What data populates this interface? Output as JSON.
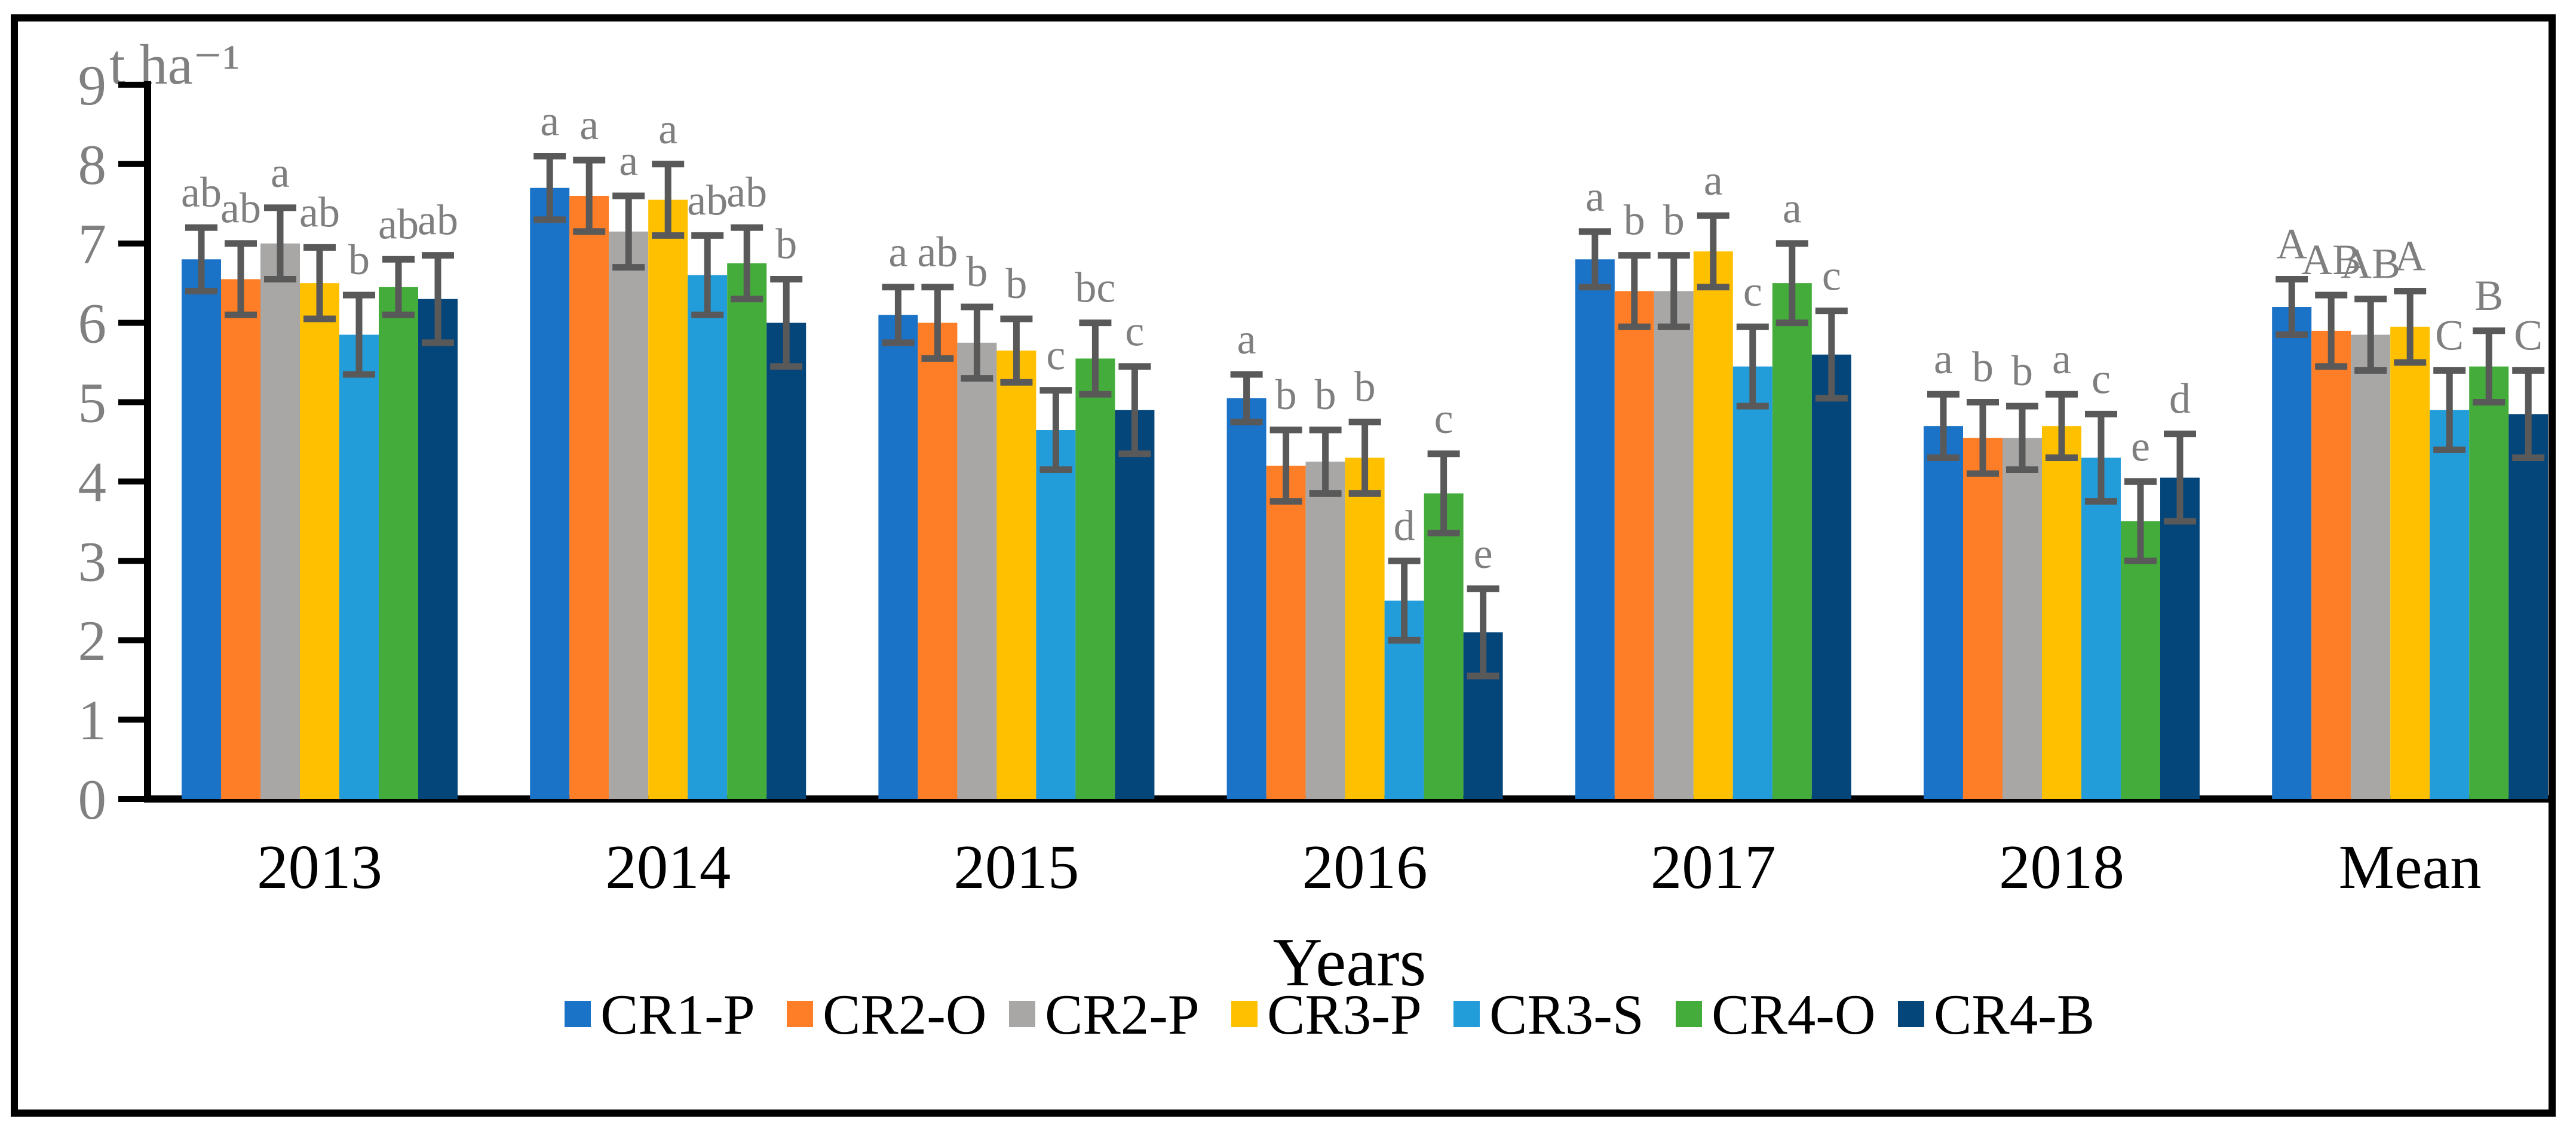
{
  "figure": {
    "unit_label": "t ha⁻¹",
    "x_axis_title": "Years"
  },
  "chart_data": {
    "type": "bar",
    "title": "",
    "ylabel": "t ha⁻¹",
    "xlabel": "Years",
    "ylim": [
      0,
      9
    ],
    "yticks": [
      0,
      1,
      2,
      3,
      4,
      5,
      6,
      7,
      8,
      9
    ],
    "grid": false,
    "legend_position": "bottom",
    "categories": [
      "2013",
      "2014",
      "2015",
      "2016",
      "2017",
      "2018",
      "Mean"
    ],
    "series": [
      {
        "name": "CR1-P",
        "color": "#1B73C8",
        "values": [
          6.8,
          7.7,
          6.1,
          5.05,
          6.8,
          4.7,
          6.2
        ],
        "errors": [
          0.4,
          0.4,
          0.35,
          0.3,
          0.35,
          0.4,
          0.35
        ],
        "letters": [
          "ab",
          "a",
          "a",
          "a",
          "a",
          "a",
          "A"
        ]
      },
      {
        "name": "CR2-O",
        "color": "#FD7E26",
        "values": [
          6.55,
          7.6,
          6.0,
          4.2,
          6.4,
          4.55,
          5.9
        ],
        "errors": [
          0.45,
          0.45,
          0.45,
          0.45,
          0.45,
          0.45,
          0.45
        ],
        "letters": [
          "ab",
          "a",
          "ab",
          "b",
          "b",
          "b",
          "AB"
        ]
      },
      {
        "name": "CR2-P",
        "color": "#A8A7A6",
        "values": [
          7.0,
          7.15,
          5.75,
          4.25,
          6.4,
          4.55,
          5.85
        ],
        "errors": [
          0.45,
          0.45,
          0.45,
          0.4,
          0.45,
          0.4,
          0.45
        ],
        "letters": [
          "a",
          "a",
          "b",
          "b",
          "b",
          "b",
          "AB"
        ]
      },
      {
        "name": "CR3-P",
        "color": "#FFC000",
        "values": [
          6.5,
          7.55,
          5.65,
          4.3,
          6.9,
          4.7,
          5.95
        ],
        "errors": [
          0.45,
          0.45,
          0.4,
          0.45,
          0.45,
          0.4,
          0.45
        ],
        "letters": [
          "ab",
          "a",
          "b",
          "b",
          "a",
          "a",
          "A"
        ]
      },
      {
        "name": "CR3-S",
        "color": "#239DDA",
        "values": [
          5.85,
          6.6,
          4.65,
          2.5,
          5.45,
          4.3,
          4.9
        ],
        "errors": [
          0.5,
          0.5,
          0.5,
          0.5,
          0.5,
          0.55,
          0.5
        ],
        "letters": [
          "b",
          "ab",
          "c",
          "d",
          "c",
          "c",
          "C"
        ]
      },
      {
        "name": "CR4-O",
        "color": "#44AC3B",
        "values": [
          6.45,
          6.75,
          5.55,
          3.85,
          6.5,
          3.5,
          5.45
        ],
        "errors": [
          0.35,
          0.45,
          0.45,
          0.5,
          0.5,
          0.5,
          0.45
        ],
        "letters": [
          "ab",
          "ab",
          "bc",
          "c",
          "a",
          "e",
          "B"
        ]
      },
      {
        "name": "CR4-B",
        "color": "#04457A",
        "values": [
          6.3,
          6.0,
          4.9,
          2.1,
          5.6,
          4.05,
          4.85
        ],
        "errors": [
          0.55,
          0.55,
          0.55,
          0.55,
          0.55,
          0.55,
          0.55
        ],
        "letters": [
          "ab",
          "b",
          "c",
          "e",
          "c",
          "d",
          "C"
        ]
      }
    ],
    "colors": {
      "error_bar": "#595959",
      "letter": "#7f7f7f",
      "tick_label": "#808080",
      "axis": "#000000",
      "frame": "#000000"
    }
  }
}
